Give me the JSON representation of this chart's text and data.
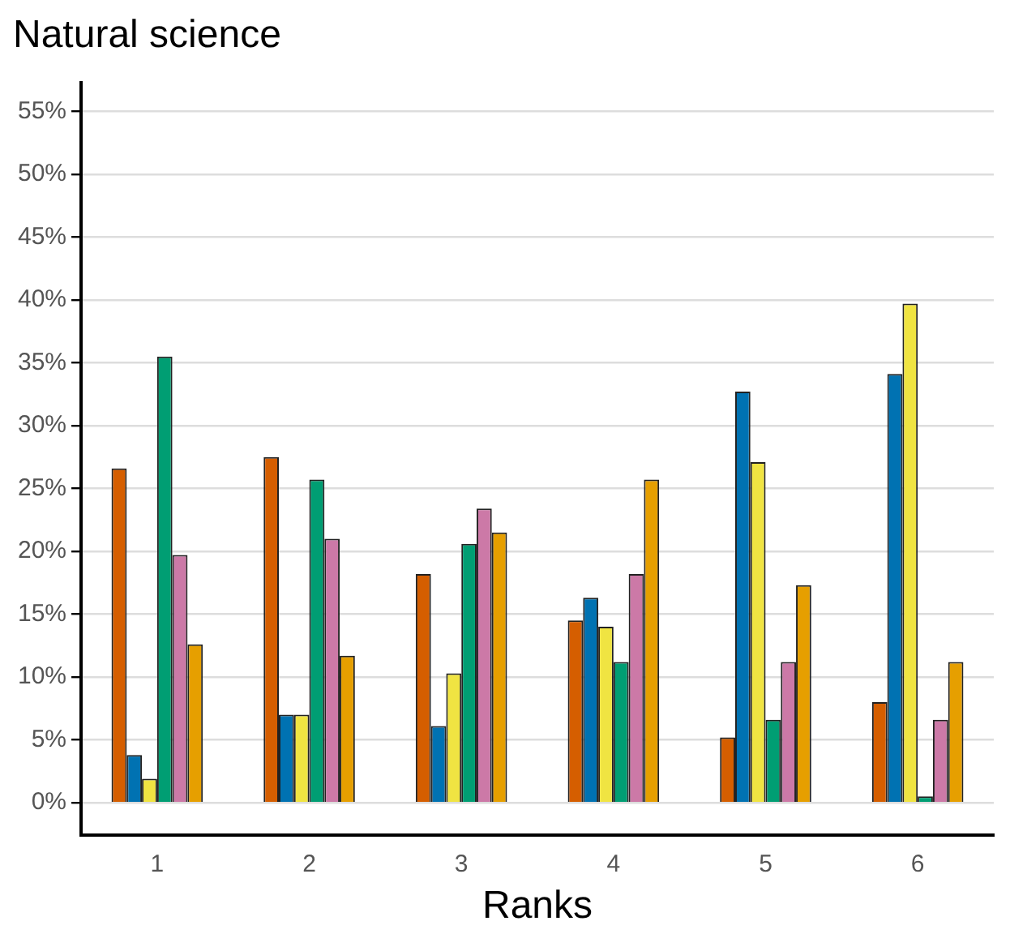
{
  "chart_data": {
    "type": "bar",
    "title": "Natural science",
    "xlabel": "Ranks",
    "categories": [
      "1",
      "2",
      "3",
      "4",
      "5",
      "6"
    ],
    "series": [
      {
        "color": "#d55e00",
        "values": [
          26.6,
          27.5,
          18.2,
          14.5,
          5.2,
          8.0
        ]
      },
      {
        "color": "#0072b2",
        "values": [
          3.8,
          7.0,
          6.1,
          16.3,
          32.7,
          34.1
        ]
      },
      {
        "color": "#f0e442",
        "values": [
          1.9,
          7.0,
          10.3,
          14.0,
          27.1,
          39.7
        ]
      },
      {
        "color": "#009e73",
        "values": [
          35.5,
          25.7,
          20.6,
          11.2,
          6.6,
          0.5
        ]
      },
      {
        "color": "#cc79a7",
        "values": [
          19.7,
          21.0,
          23.4,
          18.2,
          11.2,
          6.6
        ]
      },
      {
        "color": "#e69f00",
        "values": [
          12.6,
          11.7,
          21.5,
          25.7,
          17.3,
          11.2
        ]
      }
    ],
    "ylim": [
      -2.6,
      57.3
    ],
    "yticks": [
      {
        "value": 0,
        "label": "0%"
      },
      {
        "value": 5,
        "label": "5%"
      },
      {
        "value": 10,
        "label": "10%"
      },
      {
        "value": 15,
        "label": "15%"
      },
      {
        "value": 20,
        "label": "20%"
      },
      {
        "value": 25,
        "label": "25%"
      },
      {
        "value": 30,
        "label": "30%"
      },
      {
        "value": 35,
        "label": "35%"
      },
      {
        "value": 40,
        "label": "40%"
      },
      {
        "value": 45,
        "label": "45%"
      },
      {
        "value": 50,
        "label": "50%"
      },
      {
        "value": 55,
        "label": "55%"
      }
    ],
    "grid": "y",
    "legend": false
  }
}
